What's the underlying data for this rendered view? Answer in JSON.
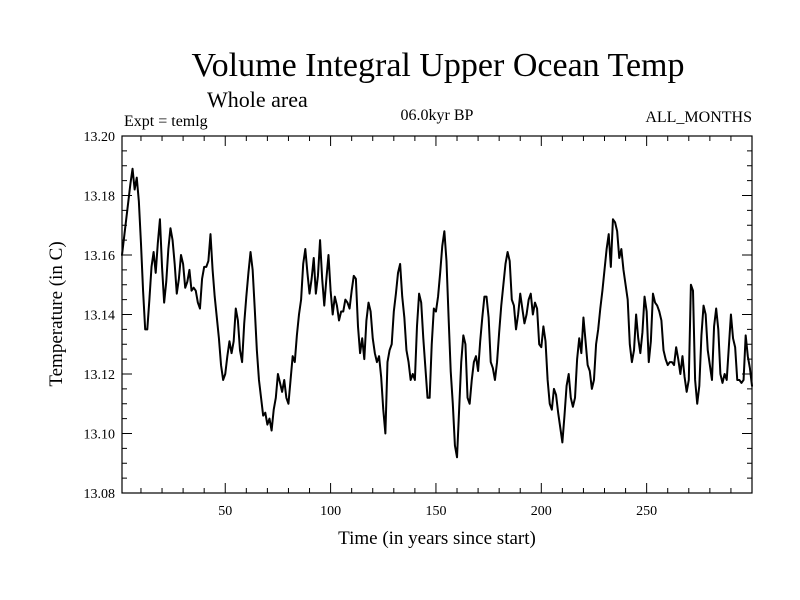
{
  "chart_data": {
    "type": "line",
    "title": "Volume Integral Upper Ocean Temp",
    "subtitle": "Whole area",
    "experiment_label": "Expt = temlg",
    "period_label": "06.0kyr BP",
    "months_label": "ALL_MONTHS",
    "xlabel": "Time (in years since start)",
    "ylabel": "Temperature (in C)",
    "xlim": [
      1,
      300
    ],
    "ylim": [
      13.08,
      13.2
    ],
    "x_ticks": [
      50,
      100,
      150,
      200,
      250
    ],
    "x_tick_labels": [
      "50",
      "100",
      "150",
      "200",
      "250"
    ],
    "y_ticks": [
      13.08,
      13.1,
      13.12,
      13.14,
      13.16,
      13.18,
      13.2
    ],
    "y_tick_labels": [
      "13.08",
      "13.10",
      "13.12",
      "13.14",
      "13.16",
      "13.18",
      "13.20"
    ],
    "grid": false,
    "series": [
      {
        "name": "Temperature",
        "color": "#000000",
        "x": [
          1,
          2,
          3,
          4,
          5,
          6,
          7,
          8,
          9,
          10,
          11,
          12,
          13,
          14,
          15,
          16,
          17,
          18,
          19,
          20,
          21,
          22,
          23,
          24,
          25,
          26,
          27,
          28,
          29,
          30,
          31,
          32,
          33,
          34,
          35,
          36,
          37,
          38,
          39,
          40,
          41,
          42,
          43,
          44,
          45,
          46,
          47,
          48,
          49,
          50,
          51,
          52,
          53,
          54,
          55,
          56,
          57,
          58,
          59,
          60,
          61,
          62,
          63,
          64,
          65,
          66,
          67,
          68,
          69,
          70,
          71,
          72,
          73,
          74,
          75,
          76,
          77,
          78,
          79,
          80,
          81,
          82,
          83,
          84,
          85,
          86,
          87,
          88,
          89,
          90,
          91,
          92,
          93,
          94,
          95,
          96,
          97,
          98,
          99,
          100,
          101,
          102,
          103,
          104,
          105,
          106,
          107,
          108,
          109,
          110,
          111,
          112,
          113,
          114,
          115,
          116,
          117,
          118,
          119,
          120,
          121,
          122,
          123,
          124,
          125,
          126,
          127,
          128,
          129,
          130,
          131,
          132,
          133,
          134,
          135,
          136,
          137,
          138,
          139,
          140,
          141,
          142,
          143,
          144,
          145,
          146,
          147,
          148,
          149,
          150,
          151,
          152,
          153,
          154,
          155,
          156,
          157,
          158,
          159,
          160,
          161,
          162,
          163,
          164,
          165,
          166,
          167,
          168,
          169,
          170,
          171,
          172,
          173,
          174,
          175,
          176,
          177,
          178,
          179,
          180,
          181,
          182,
          183,
          184,
          185,
          186,
          187,
          188,
          189,
          190,
          191,
          192,
          193,
          194,
          195,
          196,
          197,
          198,
          199,
          200,
          201,
          202,
          203,
          204,
          205,
          206,
          207,
          208,
          209,
          210,
          211,
          212,
          213,
          214,
          215,
          216,
          217,
          218,
          219,
          220,
          221,
          222,
          223,
          224,
          225,
          226,
          227,
          228,
          229,
          230,
          231,
          232,
          233,
          234,
          235,
          236,
          237,
          238,
          239,
          240,
          241,
          242,
          243,
          244,
          245,
          246,
          247,
          248,
          249,
          250,
          251,
          252,
          253,
          254,
          255,
          256,
          257,
          258,
          259,
          260,
          261,
          262,
          263,
          264,
          265,
          266,
          267,
          268,
          269,
          270,
          271,
          272,
          273,
          274,
          275,
          276,
          277,
          278,
          279,
          280,
          281,
          282,
          283,
          284,
          285,
          286,
          287,
          288,
          289,
          290,
          291,
          292,
          293,
          294,
          295,
          296,
          297,
          298,
          299,
          300
        ],
        "values": [
          13.16,
          13.166,
          13.172,
          13.178,
          13.184,
          13.189,
          13.182,
          13.186,
          13.178,
          13.164,
          13.148,
          13.135,
          13.135,
          13.145,
          13.156,
          13.161,
          13.154,
          13.164,
          13.172,
          13.156,
          13.144,
          13.151,
          13.162,
          13.169,
          13.165,
          13.157,
          13.147,
          13.152,
          13.16,
          13.157,
          13.149,
          13.151,
          13.155,
          13.148,
          13.149,
          13.148,
          13.144,
          13.142,
          13.152,
          13.156,
          13.156,
          13.158,
          13.167,
          13.155,
          13.146,
          13.139,
          13.132,
          13.123,
          13.118,
          13.12,
          13.126,
          13.131,
          13.127,
          13.131,
          13.142,
          13.138,
          13.128,
          13.124,
          13.137,
          13.146,
          13.154,
          13.161,
          13.155,
          13.142,
          13.128,
          13.118,
          13.112,
          13.106,
          13.107,
          13.103,
          13.105,
          13.101,
          13.108,
          13.112,
          13.12,
          13.117,
          13.114,
          13.118,
          13.112,
          13.11,
          13.118,
          13.126,
          13.124,
          13.133,
          13.14,
          13.145,
          13.157,
          13.162,
          13.154,
          13.147,
          13.152,
          13.159,
          13.147,
          13.153,
          13.165,
          13.152,
          13.143,
          13.152,
          13.16,
          13.148,
          13.14,
          13.146,
          13.143,
          13.138,
          13.141,
          13.141,
          13.145,
          13.144,
          13.142,
          13.148,
          13.153,
          13.152,
          13.136,
          13.127,
          13.132,
          13.125,
          13.138,
          13.144,
          13.141,
          13.132,
          13.127,
          13.124,
          13.126,
          13.119,
          13.108,
          13.1,
          13.124,
          13.128,
          13.13,
          13.141,
          13.147,
          13.154,
          13.157,
          13.146,
          13.139,
          13.128,
          13.124,
          13.118,
          13.12,
          13.118,
          13.136,
          13.147,
          13.144,
          13.132,
          13.122,
          13.112,
          13.112,
          13.13,
          13.142,
          13.141,
          13.146,
          13.154,
          13.163,
          13.168,
          13.158,
          13.139,
          13.121,
          13.11,
          13.096,
          13.092,
          13.108,
          13.124,
          13.133,
          13.13,
          13.112,
          13.11,
          13.118,
          13.124,
          13.126,
          13.121,
          13.131,
          13.139,
          13.146,
          13.146,
          13.139,
          13.124,
          13.122,
          13.118,
          13.124,
          13.134,
          13.143,
          13.15,
          13.157,
          13.161,
          13.158,
          13.145,
          13.143,
          13.135,
          13.14,
          13.147,
          13.142,
          13.137,
          13.14,
          13.145,
          13.147,
          13.14,
          13.144,
          13.142,
          13.13,
          13.129,
          13.136,
          13.131,
          13.118,
          13.11,
          13.108,
          13.115,
          13.113,
          13.107,
          13.102,
          13.097,
          13.106,
          13.116,
          13.12,
          13.112,
          13.109,
          13.112,
          13.125,
          13.132,
          13.127,
          13.139,
          13.131,
          13.123,
          13.121,
          13.115,
          13.118,
          13.13,
          13.135,
          13.142,
          13.148,
          13.155,
          13.162,
          13.167,
          13.156,
          13.172,
          13.171,
          13.168,
          13.159,
          13.162,
          13.155,
          13.15,
          13.145,
          13.13,
          13.124,
          13.128,
          13.14,
          13.132,
          13.127,
          13.134,
          13.146,
          13.141,
          13.124,
          13.131,
          13.147,
          13.144,
          13.143,
          13.141,
          13.138,
          13.128,
          13.125,
          13.123,
          13.124,
          13.124,
          13.123,
          13.129,
          13.125,
          13.12,
          13.126,
          13.119,
          13.114,
          13.118,
          13.15,
          13.148,
          13.118,
          13.11,
          13.116,
          13.133,
          13.143,
          13.14,
          13.128,
          13.123,
          13.118,
          13.136,
          13.142,
          13.135,
          13.12,
          13.117,
          13.12,
          13.118,
          13.129,
          13.14,
          13.132,
          13.129,
          13.118,
          13.118,
          13.117,
          13.118,
          13.133,
          13.126,
          13.122,
          13.116
        ]
      }
    ]
  }
}
